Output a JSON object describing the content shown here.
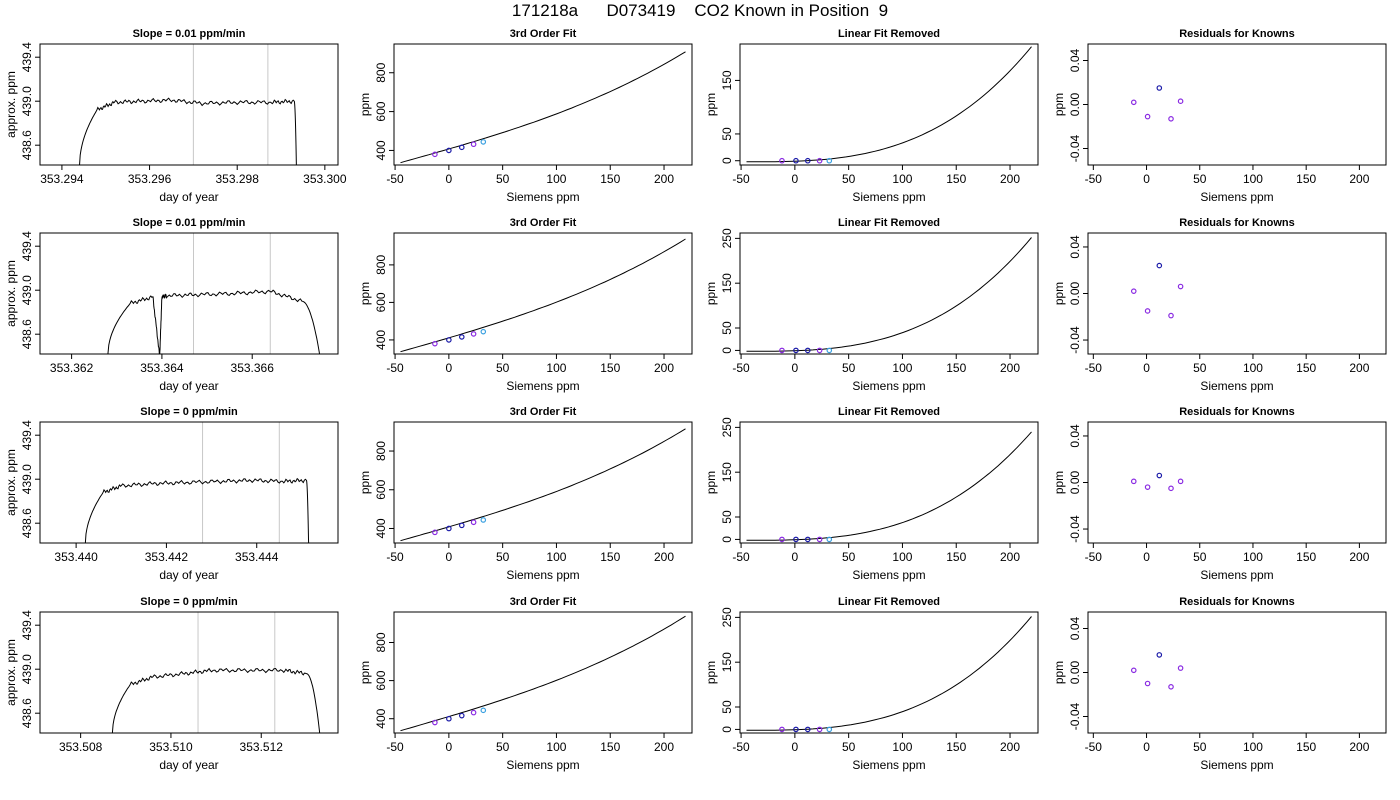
{
  "figure": {
    "title": "171218a      D073419    CO2 Known in Position  9"
  },
  "colors": {
    "line": "#000000",
    "vline": "#c8c8c8",
    "point_dark": "#1a1aa8",
    "point_purple": "#8a2be2",
    "point_cyan": "#3aa0e0",
    "point_pink": "#e070a0"
  },
  "chart_data": [
    {
      "panel": "row1-col1",
      "type": "line",
      "title": "Slope =  0.01  ppm/min",
      "xlabel": "day of year",
      "ylabel": "approx. ppm",
      "xlim": [
        353.2935,
        353.3003
      ],
      "ylim": [
        438.42,
        439.52
      ],
      "xticks": [
        353.294,
        353.296,
        353.298,
        353.3
      ],
      "xtick_labels": [
        "353.294",
        "353.296",
        "353.298",
        "353.300"
      ],
      "yticks": [
        438.6,
        439.0,
        439.4
      ],
      "ytick_labels": [
        "438.6",
        "439.0",
        "439.4"
      ],
      "vlines": [
        353.297,
        353.2987
      ],
      "x": [
        353.2944,
        353.2948,
        353.2952,
        353.2958,
        353.2965,
        353.2972,
        353.298,
        353.2988,
        353.2993,
        353.29935
      ],
      "y": [
        438.4,
        438.92,
        438.99,
        439.0,
        439.01,
        438.98,
        438.99,
        438.99,
        439.0,
        438.4
      ]
    },
    {
      "panel": "row1-col2",
      "type": "line",
      "title": "3rd Order Fit",
      "xlabel": "Siemens ppm",
      "ylabel": "ppm",
      "xlim": [
        -51,
        226
      ],
      "ylim": [
        325,
        948
      ],
      "xticks": [
        -50,
        0,
        50,
        100,
        150,
        200
      ],
      "xtick_labels": [
        "-50",
        "0",
        "50",
        "100",
        "150",
        "200"
      ],
      "yticks": [
        400,
        600,
        800
      ],
      "ytick_labels": [
        "400",
        "600",
        "800"
      ],
      "curve": {
        "x0": -45,
        "x1": 220,
        "y_at_x0": 337,
        "y_at_x1": 908
      },
      "points": {
        "x": [
          -13,
          0,
          12,
          23,
          32
        ],
        "y": [
          380,
          400,
          416,
          432,
          444
        ]
      }
    },
    {
      "panel": "row1-col3",
      "type": "line",
      "title": "Linear Fit Removed",
      "xlabel": "Siemens ppm",
      "ylabel": "ppm",
      "xlim": [
        -51,
        226
      ],
      "ylim": [
        -8,
        218
      ],
      "xticks": [
        -50,
        0,
        50,
        100,
        150,
        200
      ],
      "xtick_labels": [
        "-50",
        "0",
        "50",
        "100",
        "150",
        "200"
      ],
      "yticks": [
        0,
        50,
        150
      ],
      "ytick_labels": [
        "0",
        "50",
        "150"
      ],
      "curve": {
        "x0": -45,
        "x1": 220,
        "y_at_x0": -2,
        "y_at_x1": 213
      },
      "points": {
        "x": [
          -12,
          1,
          12,
          23,
          32
        ],
        "y": [
          0,
          0,
          0,
          0,
          0
        ]
      }
    },
    {
      "panel": "row1-col4",
      "type": "scatter",
      "title": "Residuals for Knowns",
      "xlabel": "Siemens ppm",
      "ylabel": "ppm",
      "xlim": [
        -55,
        225
      ],
      "ylim": [
        -0.055,
        0.055
      ],
      "xticks": [
        -50,
        0,
        50,
        100,
        150,
        200
      ],
      "xtick_labels": [
        "-50",
        "0",
        "50",
        "100",
        "150",
        "200"
      ],
      "yticks": [
        -0.04,
        0.0,
        0.04
      ],
      "ytick_labels": [
        "-0.04",
        "0.00",
        "0.04"
      ],
      "points": {
        "x": [
          -12,
          1,
          12,
          23,
          32
        ],
        "y": [
          0.002,
          -0.011,
          0.015,
          -0.013,
          0.003
        ]
      }
    },
    {
      "panel": "row2-col1",
      "type": "line",
      "title": "Slope =  0.01  ppm/min",
      "xlabel": "day of year",
      "ylabel": "approx. ppm",
      "xlim": [
        353.3613,
        353.3679
      ],
      "ylim": [
        438.42,
        439.52
      ],
      "xticks": [
        353.362,
        353.364,
        353.366
      ],
      "xtick_labels": [
        "353.362",
        "353.364",
        "353.366"
      ],
      "yticks": [
        438.6,
        439.0,
        439.4
      ],
      "ytick_labels": [
        "438.6",
        "439.0",
        "439.4"
      ],
      "vlines": [
        353.3647,
        353.3664
      ],
      "x": [
        353.3628,
        353.3633,
        353.3638,
        353.36395,
        353.364,
        353.3641,
        353.3648,
        353.3656,
        353.3664,
        353.3671,
        353.3675
      ],
      "y": [
        438.4,
        438.88,
        438.94,
        438.4,
        438.94,
        438.95,
        438.96,
        438.97,
        438.99,
        438.9,
        438.4
      ]
    },
    {
      "panel": "row2-col2",
      "type": "line",
      "title": "3rd Order Fit",
      "xlabel": "Siemens ppm",
      "ylabel": "ppm",
      "xlim": [
        -51,
        226
      ],
      "ylim": [
        325,
        970
      ],
      "xticks": [
        -50,
        0,
        50,
        100,
        150,
        200
      ],
      "xtick_labels": [
        "-50",
        "0",
        "50",
        "100",
        "150",
        "200"
      ],
      "yticks": [
        400,
        600,
        800
      ],
      "ytick_labels": [
        "400",
        "600",
        "800"
      ],
      "curve": {
        "x0": -45,
        "x1": 220,
        "y_at_x0": 337,
        "y_at_x1": 938
      },
      "points": {
        "x": [
          -13,
          0,
          12,
          23,
          32
        ],
        "y": [
          380,
          400,
          416,
          432,
          444
        ]
      }
    },
    {
      "panel": "row2-col3",
      "type": "line",
      "title": "Linear Fit Removed",
      "xlabel": "Siemens ppm",
      "ylabel": "ppm",
      "xlim": [
        -51,
        226
      ],
      "ylim": [
        -8,
        262
      ],
      "xticks": [
        -50,
        0,
        50,
        100,
        150,
        200
      ],
      "xtick_labels": [
        "-50",
        "0",
        "50",
        "100",
        "150",
        "200"
      ],
      "yticks": [
        0,
        50,
        150,
        250
      ],
      "ytick_labels": [
        "0",
        "50",
        "150",
        "250"
      ],
      "curve": {
        "x0": -45,
        "x1": 220,
        "y_at_x0": -2,
        "y_at_x1": 252
      },
      "points": {
        "x": [
          -12,
          1,
          12,
          23,
          32
        ],
        "y": [
          0,
          0,
          0,
          0,
          0
        ]
      }
    },
    {
      "panel": "row2-col4",
      "type": "scatter",
      "title": "Residuals for Knowns",
      "xlabel": "Siemens ppm",
      "ylabel": "ppm",
      "xlim": [
        -55,
        225
      ],
      "ylim": [
        -0.052,
        0.052
      ],
      "xticks": [
        -50,
        0,
        50,
        100,
        150,
        200
      ],
      "xtick_labels": [
        "-50",
        "0",
        "50",
        "100",
        "150",
        "200"
      ],
      "yticks": [
        -0.04,
        0.0,
        0.04
      ],
      "ytick_labels": [
        "-0.04",
        "0.00",
        "0.04"
      ],
      "points": {
        "x": [
          -12,
          1,
          12,
          23,
          32
        ],
        "y": [
          0.002,
          -0.015,
          0.024,
          -0.019,
          0.006
        ]
      }
    },
    {
      "panel": "row3-col1",
      "type": "line",
      "title": "Slope =  0  ppm/min",
      "xlabel": "day of year",
      "ylabel": "approx. ppm",
      "xlim": [
        353.4392,
        353.4458
      ],
      "ylim": [
        438.42,
        439.52
      ],
      "xticks": [
        353.44,
        353.442,
        353.444
      ],
      "xtick_labels": [
        "353.440",
        "353.442",
        "353.444"
      ],
      "yticks": [
        438.6,
        439.0,
        439.4
      ],
      "ytick_labels": [
        "438.6",
        "439.0",
        "439.4"
      ],
      "vlines": [
        353.4428,
        353.4445
      ],
      "x": [
        353.4402,
        353.4406,
        353.441,
        353.4417,
        353.4424,
        353.4432,
        353.4439,
        353.4446,
        353.4451,
        353.44515
      ],
      "y": [
        438.4,
        438.88,
        438.94,
        438.96,
        438.97,
        438.98,
        438.99,
        438.98,
        438.99,
        438.4
      ]
    },
    {
      "panel": "row3-col2",
      "type": "line",
      "title": "3rd Order Fit",
      "xlabel": "Siemens ppm",
      "ylabel": "ppm",
      "xlim": [
        -51,
        226
      ],
      "ylim": [
        325,
        950
      ],
      "xticks": [
        -50,
        0,
        50,
        100,
        150,
        200
      ],
      "xtick_labels": [
        "-50",
        "0",
        "50",
        "100",
        "150",
        "200"
      ],
      "yticks": [
        400,
        600,
        800
      ],
      "ytick_labels": [
        "400",
        "600",
        "800"
      ],
      "curve": {
        "x0": -45,
        "x1": 220,
        "y_at_x0": 337,
        "y_at_x1": 915
      },
      "points": {
        "x": [
          -13,
          0,
          12,
          23,
          32
        ],
        "y": [
          380,
          400,
          416,
          432,
          444
        ]
      }
    },
    {
      "panel": "row3-col3",
      "type": "line",
      "title": "Linear Fit Removed",
      "xlabel": "Siemens ppm",
      "ylabel": "ppm",
      "xlim": [
        -51,
        226
      ],
      "ylim": [
        -8,
        262
      ],
      "xticks": [
        -50,
        0,
        50,
        100,
        150,
        200
      ],
      "xtick_labels": [
        "-50",
        "0",
        "50",
        "100",
        "150",
        "200"
      ],
      "yticks": [
        0,
        50,
        150,
        250
      ],
      "ytick_labels": [
        "0",
        "50",
        "150",
        "250"
      ],
      "curve": {
        "x0": -45,
        "x1": 220,
        "y_at_x0": -2,
        "y_at_x1": 240
      },
      "points": {
        "x": [
          -12,
          1,
          12,
          23,
          32
        ],
        "y": [
          0,
          0,
          0,
          0,
          0
        ]
      }
    },
    {
      "panel": "row3-col4",
      "type": "scatter",
      "title": "Residuals for Knowns",
      "xlabel": "Siemens ppm",
      "ylabel": "ppm",
      "xlim": [
        -55,
        225
      ],
      "ylim": [
        -0.052,
        0.052
      ],
      "xticks": [
        -50,
        0,
        50,
        100,
        150,
        200
      ],
      "xtick_labels": [
        "-50",
        "0",
        "50",
        "100",
        "150",
        "200"
      ],
      "yticks": [
        -0.04,
        0.0,
        0.04
      ],
      "ytick_labels": [
        "-0.04",
        "0.00",
        "0.04"
      ],
      "points": {
        "x": [
          -12,
          1,
          12,
          23,
          32
        ],
        "y": [
          0.001,
          -0.004,
          0.006,
          -0.005,
          0.001
        ]
      }
    },
    {
      "panel": "row4-col1",
      "type": "line",
      "title": "Slope =  0  ppm/min",
      "xlabel": "day of year",
      "ylabel": "approx. ppm",
      "xlim": [
        353.5071,
        353.5137
      ],
      "ylim": [
        438.42,
        439.52
      ],
      "xticks": [
        353.508,
        353.51,
        353.512
      ],
      "xtick_labels": [
        "353.508",
        "353.510",
        "353.512"
      ],
      "yticks": [
        438.6,
        439.0,
        439.4
      ],
      "ytick_labels": [
        "438.6",
        "439.0",
        "439.4"
      ],
      "vlines": [
        353.5106,
        353.5123
      ],
      "x": [
        353.5087,
        353.5091,
        353.5096,
        353.5103,
        353.5109,
        353.5117,
        353.5125,
        353.513,
        353.5133
      ],
      "y": [
        438.4,
        438.86,
        438.93,
        438.96,
        438.99,
        438.99,
        438.99,
        438.96,
        438.4
      ]
    },
    {
      "panel": "row4-col2",
      "type": "line",
      "title": "3rd Order Fit",
      "xlabel": "Siemens ppm",
      "ylabel": "ppm",
      "xlim": [
        -51,
        226
      ],
      "ylim": [
        325,
        960
      ],
      "xticks": [
        -50,
        0,
        50,
        100,
        150,
        200
      ],
      "xtick_labels": [
        "-50",
        "0",
        "50",
        "100",
        "150",
        "200"
      ],
      "yticks": [
        400,
        600,
        800
      ],
      "ytick_labels": [
        "400",
        "600",
        "800"
      ],
      "curve": {
        "x0": -45,
        "x1": 220,
        "y_at_x0": 337,
        "y_at_x1": 938
      },
      "points": {
        "x": [
          -13,
          0,
          12,
          23,
          32
        ],
        "y": [
          380,
          400,
          416,
          432,
          444
        ]
      }
    },
    {
      "panel": "row4-col3",
      "type": "line",
      "title": "Linear Fit Removed",
      "xlabel": "Siemens ppm",
      "ylabel": "ppm",
      "xlim": [
        -51,
        226
      ],
      "ylim": [
        -8,
        262
      ],
      "xticks": [
        -50,
        0,
        50,
        100,
        150,
        200
      ],
      "xtick_labels": [
        "-50",
        "0",
        "50",
        "100",
        "150",
        "200"
      ],
      "yticks": [
        0,
        50,
        150,
        250
      ],
      "ytick_labels": [
        "0",
        "50",
        "150",
        "250"
      ],
      "curve": {
        "x0": -45,
        "x1": 220,
        "y_at_x0": -2,
        "y_at_x1": 252
      },
      "points": {
        "x": [
          -12,
          1,
          12,
          23,
          32
        ],
        "y": [
          0,
          0,
          0,
          0,
          0
        ]
      }
    },
    {
      "panel": "row4-col4",
      "type": "scatter",
      "title": "Residuals for Knowns",
      "xlabel": "Siemens ppm",
      "ylabel": "ppm",
      "xlim": [
        -55,
        225
      ],
      "ylim": [
        -0.055,
        0.055
      ],
      "xticks": [
        -50,
        0,
        50,
        100,
        150,
        200
      ],
      "xtick_labels": [
        "-50",
        "0",
        "50",
        "100",
        "150",
        "200"
      ],
      "yticks": [
        -0.04,
        0.0,
        0.04
      ],
      "ytick_labels": [
        "-0.04",
        "0.00",
        "0.04"
      ],
      "points": {
        "x": [
          -12,
          1,
          12,
          23,
          32
        ],
        "y": [
          0.002,
          -0.01,
          0.016,
          -0.013,
          0.004
        ]
      }
    }
  ]
}
